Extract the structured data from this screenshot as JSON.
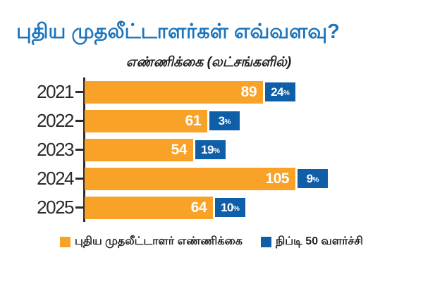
{
  "title": "புதிய முதலீட்டாளர்கள் எவ்வளவு?",
  "subtitle": "எண்ணிக்கை (லட்சங்களில்)",
  "percent_sign": "%",
  "colors": {
    "bar_orange": "#F8A227",
    "badge_blue": "#0E5EA8",
    "title_blue": "#1C75BC",
    "axis_dark": "#2C2C2C"
  },
  "legend": [
    {
      "label": "புதிய முதலீட்டாளர் எண்ணிக்கை",
      "swatch": "orange-square",
      "color": "#F8A227"
    },
    {
      "label": "நிப்டி 50 வளர்ச்சி",
      "swatch": "blue-square",
      "color": "#0E5EA8"
    }
  ],
  "chart_data": {
    "type": "bar",
    "orientation": "horizontal",
    "title": "புதிய முதலீட்டாளர்கள் எவ்வளவு?",
    "subtitle": "எண்ணிக்கை (லட்சங்களில்)",
    "categories": [
      "2021",
      "2022",
      "2023",
      "2024",
      "2025"
    ],
    "series": [
      {
        "name": "புதிய முதலீட்டாளர் எண்ணிக்கை",
        "color": "#F8A227",
        "values": [
          89,
          61,
          54,
          105,
          64
        ]
      },
      {
        "name": "நிப்டி 50 வளர்ச்சி",
        "color": "#0E5EA8",
        "unit": "%",
        "values": [
          24,
          3,
          19,
          9,
          10
        ]
      }
    ],
    "value_axis_visible": false,
    "grid": false,
    "legend_position": "bottom"
  }
}
